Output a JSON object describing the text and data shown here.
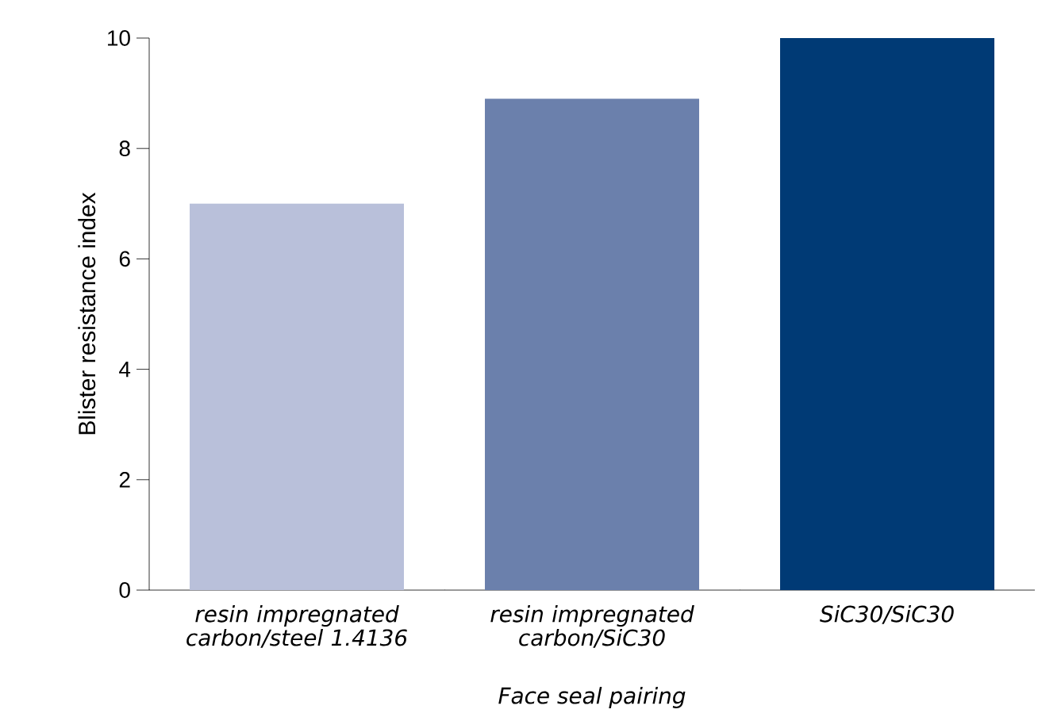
{
  "chart_data": {
    "type": "bar",
    "xlabel": "Face seal pairing",
    "ylabel": "Blister resistance index",
    "categories": [
      "resin impregnated carbon/steel 1.4136",
      "resin impregnated carbon/SiC30",
      "SiC30/SiC30"
    ],
    "values": [
      7.0,
      8.9,
      10
    ],
    "colors": [
      "#b9c0da",
      "#6b80ac",
      "#003a75"
    ],
    "ylim": [
      0,
      10
    ],
    "yticks": [
      0,
      2,
      4,
      6,
      8,
      10
    ],
    "grid": false
  }
}
